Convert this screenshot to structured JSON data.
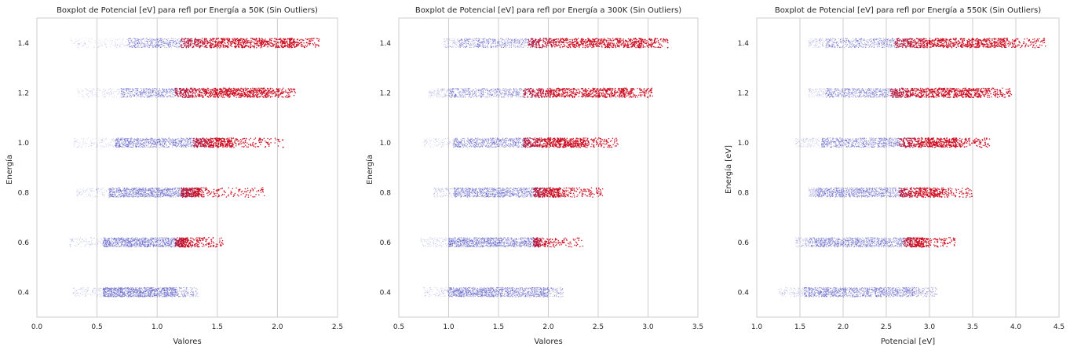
{
  "figure": {
    "colors": {
      "background": "#ffffff",
      "grid": "#cccccc",
      "frame": "#cccccc",
      "cool_points": "#4b4bc0",
      "hot_points": "#cc0a1e"
    }
  },
  "chart_data": [
    {
      "type": "scatter",
      "style": "strip plot (jittered points), colored blue to red by value",
      "title": "Boxplot de Potencial [eV] para refl por Energía a 50K (Sin Outliers)",
      "xlabel": "Valores",
      "ylabel": "Energía",
      "xlim": [
        0.0,
        2.5
      ],
      "xticks": [
        "0.0",
        "0.5",
        "1.0",
        "1.5",
        "2.0",
        "2.5"
      ],
      "ylim": [
        0.3,
        1.5
      ],
      "yticks": [
        "0.4",
        "0.6",
        "0.8",
        "1.0",
        "1.2",
        "1.4"
      ],
      "grid": "vertical",
      "categories": [
        {
          "y": 0.4,
          "min": 0.3,
          "dense_min": 0.55,
          "dense_max": 1.15,
          "max": 1.35,
          "red_from": 99
        },
        {
          "y": 0.6,
          "min": 0.27,
          "dense_min": 0.55,
          "dense_max": 1.25,
          "max": 1.55,
          "red_from": 1.15
        },
        {
          "y": 0.8,
          "min": 0.33,
          "dense_min": 0.6,
          "dense_max": 1.35,
          "max": 1.9,
          "red_from": 1.2
        },
        {
          "y": 1.0,
          "min": 0.3,
          "dense_min": 0.65,
          "dense_max": 1.6,
          "max": 2.05,
          "red_from": 1.3
        },
        {
          "y": 1.2,
          "min": 0.33,
          "dense_min": 0.7,
          "dense_max": 1.9,
          "max": 2.15,
          "red_from": 1.15
        },
        {
          "y": 1.4,
          "min": 0.28,
          "dense_min": 0.75,
          "dense_max": 2.1,
          "max": 2.35,
          "red_from": 1.2
        }
      ]
    },
    {
      "type": "scatter",
      "style": "strip plot (jittered points), colored blue to red by value",
      "title": "Boxplot de Potencial [eV] para refl por Energía a 300K (Sin Outliers)",
      "xlabel": "Valores",
      "ylabel": "Energía",
      "xlim": [
        0.5,
        3.5
      ],
      "xticks": [
        "0.5",
        "1.0",
        "1.5",
        "2.0",
        "2.5",
        "3.0",
        "3.5"
      ],
      "ylim": [
        0.3,
        1.5
      ],
      "yticks": [
        "0.4",
        "0.6",
        "0.8",
        "1.0",
        "1.2",
        "1.4"
      ],
      "grid": "vertical",
      "categories": [
        {
          "y": 0.4,
          "min": 0.75,
          "dense_min": 1.0,
          "dense_max": 1.95,
          "max": 2.15,
          "red_from": 99
        },
        {
          "y": 0.6,
          "min": 0.72,
          "dense_min": 1.0,
          "dense_max": 1.9,
          "max": 2.35,
          "red_from": 1.85
        },
        {
          "y": 0.8,
          "min": 0.85,
          "dense_min": 1.05,
          "dense_max": 2.1,
          "max": 2.55,
          "red_from": 1.85
        },
        {
          "y": 1.0,
          "min": 0.75,
          "dense_min": 1.05,
          "dense_max": 2.35,
          "max": 2.7,
          "red_from": 1.75
        },
        {
          "y": 1.2,
          "min": 0.8,
          "dense_min": 1.0,
          "dense_max": 2.75,
          "max": 3.05,
          "red_from": 1.75
        },
        {
          "y": 1.4,
          "min": 0.95,
          "dense_min": 1.1,
          "dense_max": 2.9,
          "max": 3.2,
          "red_from": 1.8
        }
      ]
    },
    {
      "type": "scatter",
      "style": "strip plot (jittered points), colored blue to red by value",
      "title": "Boxplot de Potencial [eV] para refl por Energía a 550K (Sin Outliers)",
      "xlabel": "Potencial [eV]",
      "ylabel": "Energía [eV]",
      "xlim": [
        1.0,
        4.5
      ],
      "xticks": [
        "1.0",
        "1.5",
        "2.0",
        "2.5",
        "3.0",
        "3.5",
        "4.0",
        "4.5"
      ],
      "ylim": [
        0.3,
        1.5
      ],
      "yticks": [
        "0.4",
        "0.6",
        "0.8",
        "1.0",
        "1.2",
        "1.4"
      ],
      "grid": "vertical",
      "categories": [
        {
          "y": 0.4,
          "min": 1.25,
          "dense_min": 1.55,
          "dense_max": 2.8,
          "max": 3.1,
          "red_from": 99
        },
        {
          "y": 0.6,
          "min": 1.45,
          "dense_min": 1.6,
          "dense_max": 2.9,
          "max": 3.3,
          "red_from": 2.7
        },
        {
          "y": 0.8,
          "min": 1.6,
          "dense_min": 1.7,
          "dense_max": 3.05,
          "max": 3.5,
          "red_from": 2.65
        },
        {
          "y": 1.0,
          "min": 1.45,
          "dense_min": 1.75,
          "dense_max": 3.3,
          "max": 3.7,
          "red_from": 2.65
        },
        {
          "y": 1.2,
          "min": 1.6,
          "dense_min": 1.8,
          "dense_max": 3.55,
          "max": 3.95,
          "red_from": 2.55
        },
        {
          "y": 1.4,
          "min": 1.6,
          "dense_min": 1.8,
          "dense_max": 3.85,
          "max": 4.35,
          "red_from": 2.6
        }
      ]
    }
  ]
}
